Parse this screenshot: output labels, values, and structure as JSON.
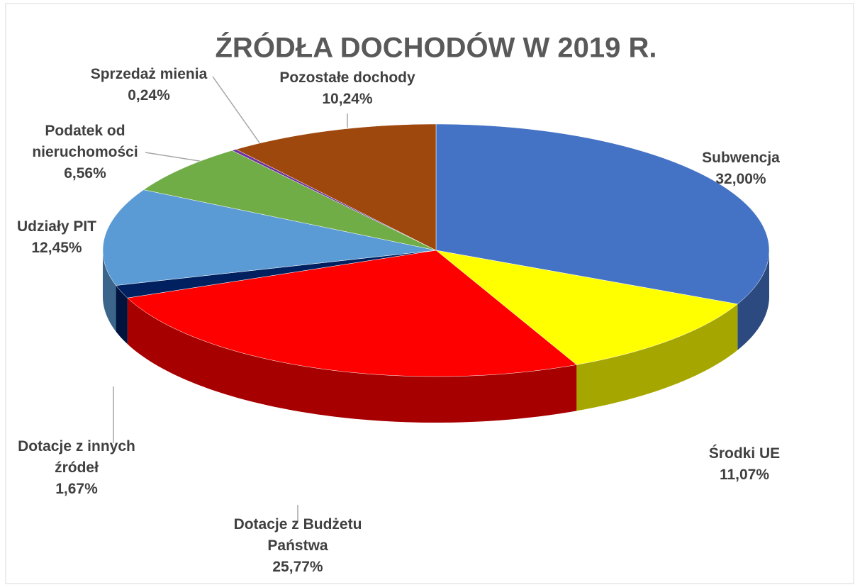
{
  "chart_data": {
    "type": "pie",
    "title": "ŹRÓDŁA DOCHODÓW W 2019 R.",
    "categories": [
      "Subwencja",
      "Środki UE",
      "Dotacje z Budżetu Państwa",
      "Dotacje z innych źródeł",
      "Udziały PIT",
      "Podatek od nieruchomości",
      "Sprzedaż mienia",
      "Pozostałe dochody"
    ],
    "values": [
      32.0,
      11.07,
      25.77,
      1.67,
      12.45,
      6.56,
      0.24,
      10.24
    ],
    "value_labels": [
      "32,00%",
      "11,07%",
      "25,77%",
      "1,67%",
      "12,45%",
      "6,56%",
      "0,24%",
      "10,24%"
    ],
    "colors": [
      "#4472c4",
      "#ffff00",
      "#ff0000",
      "#002060",
      "#5b9bd5",
      "#70ad47",
      "#7030a0",
      "#9e480e"
    ]
  }
}
